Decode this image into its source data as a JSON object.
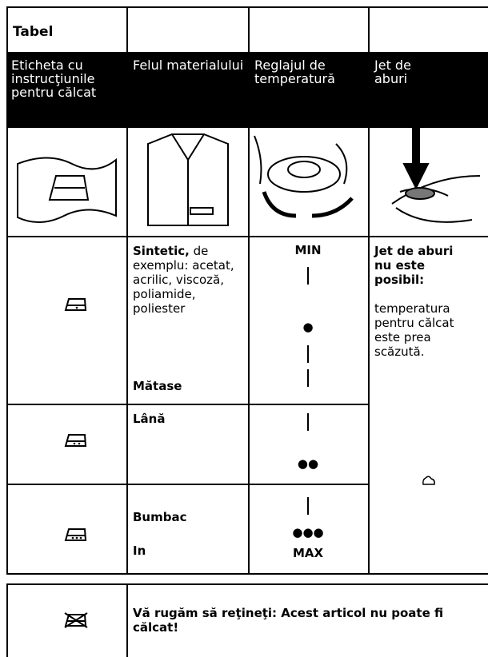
{
  "title": "Tabel",
  "header": [
    "Eticheta cu instrucţiunile pentru călcat",
    "Felul materialului",
    "Reglajul de temperatură",
    "Jet de aburi"
  ],
  "rows": [
    {
      "material": [
        "Sintetic,",
        "de exemplu: acetat, acrilic, viscoză, poliamide, poliester",
        "Mătase"
      ],
      "temperature": [
        "MIN",
        "●"
      ]
    },
    {
      "material": [
        "Lână"
      ],
      "temperature": [
        "●●"
      ]
    },
    {
      "material": [
        "Bumbac",
        "In"
      ],
      "temperature": [
        "●●●",
        "MAX"
      ]
    }
  ],
  "steam": [
    "Jet de aburi nu este posibil:",
    "temperatura pentru călcat este prea scăzută."
  ],
  "note": "Vă rugăm să reţineţi: Acest articol nu poate fi călcat!"
}
